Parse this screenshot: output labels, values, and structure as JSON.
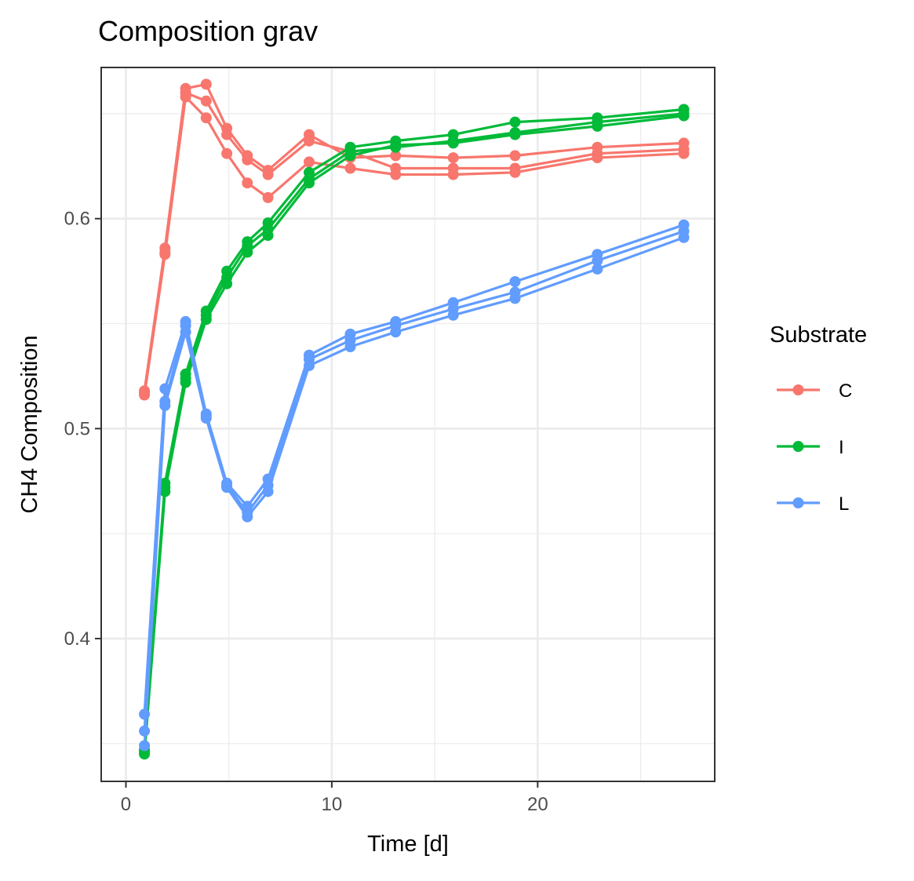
{
  "chart_data": {
    "type": "line",
    "title": "Composition grav",
    "xlabel": "Time [d]",
    "ylabel": "CH4 Composition",
    "xlim": [
      -1.2,
      28.6
    ],
    "ylim": [
      0.332,
      0.672
    ],
    "x_ticks": [
      0,
      10,
      20
    ],
    "x_tick_labels": [
      "0",
      "10",
      "20"
    ],
    "y_ticks": [
      0.4,
      0.5,
      0.6
    ],
    "y_tick_labels": [
      "0.4",
      "0.5",
      "0.6"
    ],
    "x_minor_ticks": [
      5,
      15,
      25
    ],
    "y_minor_ticks": [
      0.35,
      0.45,
      0.55,
      0.65
    ],
    "grid": true,
    "legend": {
      "title": "Substrate",
      "position": "right",
      "entries": [
        {
          "label": "C",
          "color": "#F8766D"
        },
        {
          "label": "I",
          "color": "#00BA38"
        },
        {
          "label": "L",
          "color": "#619CFF"
        }
      ]
    },
    "x": [
      0.9,
      1.9,
      2.9,
      3.9,
      4.9,
      5.9,
      6.9,
      8.9,
      10.9,
      13.1,
      15.9,
      18.9,
      22.9,
      27.1
    ],
    "series": [
      {
        "name": "C",
        "color": "#F8766D",
        "values": [
          0.518,
          0.586,
          0.662,
          0.664,
          0.643,
          0.63,
          0.623,
          0.64,
          0.629,
          0.63,
          0.629,
          0.63,
          0.634,
          0.636
        ]
      },
      {
        "name": "C",
        "color": "#F8766D",
        "values": [
          0.517,
          0.584,
          0.66,
          0.656,
          0.64,
          0.628,
          0.621,
          0.637,
          0.632,
          0.624,
          0.624,
          0.624,
          0.631,
          0.633
        ]
      },
      {
        "name": "C",
        "color": "#F8766D",
        "values": [
          0.516,
          0.583,
          0.658,
          0.648,
          0.631,
          0.617,
          0.61,
          0.627,
          0.624,
          0.621,
          0.621,
          0.622,
          0.629,
          0.631
        ]
      },
      {
        "name": "I",
        "color": "#00BA38",
        "values": [
          0.347,
          0.474,
          0.526,
          0.556,
          0.575,
          0.589,
          0.598,
          0.622,
          0.634,
          0.637,
          0.64,
          0.646,
          0.648,
          0.652
        ]
      },
      {
        "name": "I",
        "color": "#00BA38",
        "values": [
          0.346,
          0.472,
          0.524,
          0.554,
          0.572,
          0.587,
          0.595,
          0.619,
          0.632,
          0.634,
          0.637,
          0.641,
          0.646,
          0.65
        ]
      },
      {
        "name": "I",
        "color": "#00BA38",
        "values": [
          0.345,
          0.47,
          0.522,
          0.552,
          0.569,
          0.584,
          0.592,
          0.617,
          0.63,
          0.635,
          0.636,
          0.64,
          0.644,
          0.649
        ]
      },
      {
        "name": "L",
        "color": "#619CFF",
        "values": [
          0.364,
          0.519,
          0.551,
          0.507,
          0.474,
          0.463,
          0.476,
          0.535,
          0.545,
          0.551,
          0.56,
          0.57,
          0.583,
          0.597
        ]
      },
      {
        "name": "L",
        "color": "#619CFF",
        "values": [
          0.356,
          0.513,
          0.549,
          0.506,
          0.473,
          0.46,
          0.473,
          0.533,
          0.542,
          0.549,
          0.557,
          0.565,
          0.58,
          0.594
        ]
      },
      {
        "name": "L",
        "color": "#619CFF",
        "values": [
          0.349,
          0.511,
          0.546,
          0.505,
          0.472,
          0.458,
          0.47,
          0.53,
          0.539,
          0.546,
          0.554,
          0.562,
          0.576,
          0.591
        ]
      }
    ]
  }
}
